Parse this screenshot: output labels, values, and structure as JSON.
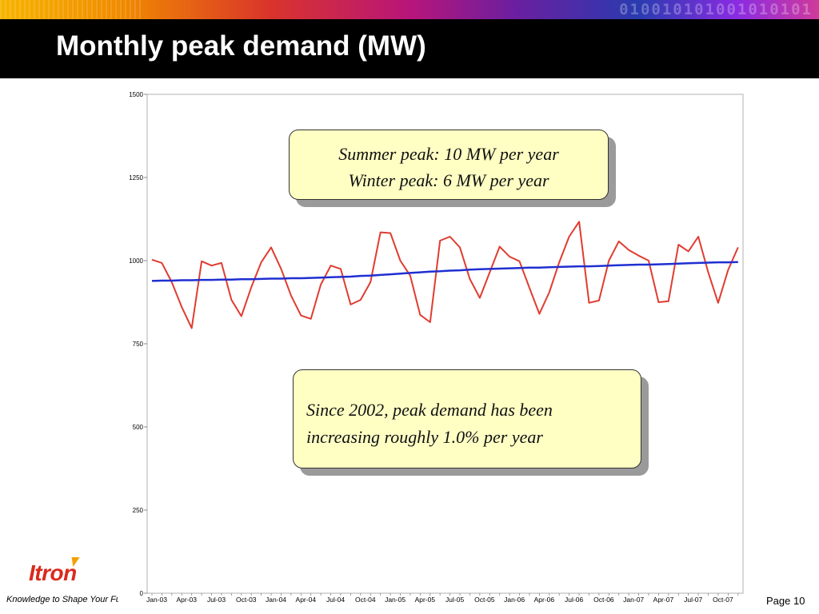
{
  "header": {
    "title": "Monthly peak demand (MW)",
    "binary_text": "010010101001010101"
  },
  "footer": {
    "logo": "Itron",
    "tagline": "Knowledge to Shape Your Futu",
    "page": "Page 10"
  },
  "notes": {
    "summer": "Summer peak: 10 MW per year",
    "winter": "Winter peak: 6 MW per year",
    "growth": "Since 2002, peak demand has been increasing roughly 1.0% per year"
  },
  "chart_data": {
    "type": "line",
    "title": "",
    "xlabel": "",
    "ylabel": "",
    "ylim": [
      0,
      1500
    ],
    "yticks": [
      0,
      250,
      500,
      750,
      1000,
      1250,
      1500
    ],
    "xtick_labels": [
      "Jan-03",
      "Apr-03",
      "Jul-03",
      "Oct-03",
      "Jan-04",
      "Apr-04",
      "Jul-04",
      "Oct-04",
      "Jan-05",
      "Apr-05",
      "Jul-05",
      "Oct-05",
      "Jan-06",
      "Apr-06",
      "Jul-06",
      "Oct-06",
      "Jan-07",
      "Apr-07",
      "Jul-07",
      "Oct-07"
    ],
    "grid": false,
    "legend": "none",
    "series": [
      {
        "color": "#e03c31",
        "values": [
          1003,
          993,
          935,
          860,
          797,
          998,
          985,
          993,
          882,
          833,
          920,
          995,
          1040,
          975,
          895,
          835,
          825,
          928,
          985,
          975,
          868,
          882,
          935,
          1085,
          1083,
          1000,
          955,
          837,
          815,
          1060,
          1072,
          1040,
          945,
          888,
          965,
          1042,
          1012,
          998,
          918,
          840,
          905,
          995,
          1072,
          1117,
          873,
          880,
          1000,
          1058,
          1032,
          1015,
          1000,
          875,
          878,
          1048,
          1028,
          1072,
          965,
          873,
          972,
          1040
        ]
      },
      {
        "color": "#1f2fd1",
        "values": [
          939,
          940,
          940,
          941,
          941,
          942,
          942,
          943,
          943,
          944,
          944,
          945,
          946,
          946,
          947,
          947,
          948,
          949,
          950,
          951,
          952,
          954,
          955,
          957,
          959,
          961,
          963,
          965,
          967,
          968,
          970,
          971,
          973,
          974,
          975,
          976,
          977,
          978,
          979,
          979,
          980,
          981,
          982,
          983,
          983,
          984,
          985,
          986,
          987,
          988,
          988,
          989,
          990,
          991,
          992,
          993,
          994,
          995,
          995,
          996
        ]
      }
    ]
  }
}
